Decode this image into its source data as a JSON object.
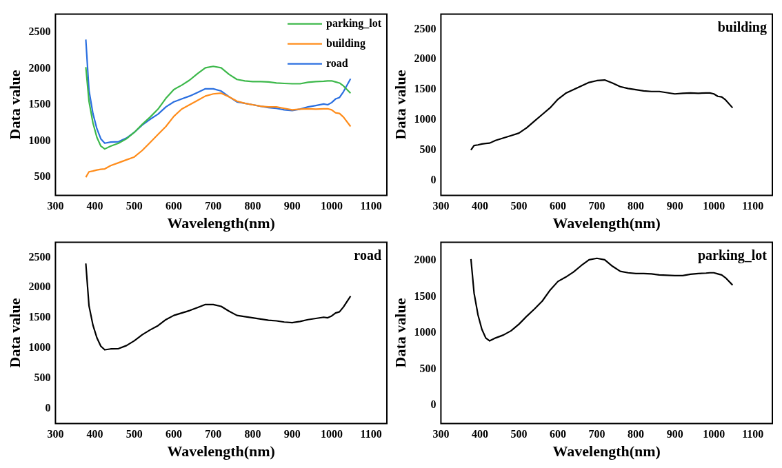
{
  "chart_data": [
    {
      "type": "line",
      "xlabel": "Wavelength(nm)",
      "ylabel": "Data value",
      "x": [
        377,
        385,
        395,
        405,
        415,
        425,
        440,
        460,
        480,
        500,
        520,
        540,
        560,
        580,
        600,
        620,
        640,
        660,
        680,
        700,
        720,
        740,
        760,
        780,
        800,
        820,
        840,
        860,
        880,
        900,
        920,
        940,
        960,
        980,
        990,
        1000,
        1010,
        1020,
        1030,
        1048
      ],
      "xlim": [
        300,
        1140
      ],
      "xticks": [
        300,
        400,
        500,
        600,
        700,
        800,
        900,
        1000,
        1100
      ],
      "ylim": [
        250,
        2750
      ],
      "yticks": [
        500,
        1000,
        1500,
        2000,
        2500
      ],
      "grid": false,
      "legend": "top right",
      "series": [
        {
          "name": "parking_lot",
          "color": "#3cb84a",
          "values": [
            2020,
            1550,
            1250,
            1050,
            930,
            890,
            930,
            970,
            1030,
            1120,
            1230,
            1330,
            1440,
            1590,
            1710,
            1770,
            1840,
            1930,
            2010,
            2030,
            2010,
            1920,
            1850,
            1830,
            1820,
            1820,
            1815,
            1800,
            1795,
            1790,
            1790,
            1810,
            1820,
            1825,
            1830,
            1830,
            1815,
            1800,
            1760,
            1660
          ]
        },
        {
          "name": "building",
          "color": "#ff8c1a",
          "values": [
            500,
            575,
            585,
            600,
            610,
            615,
            660,
            700,
            740,
            780,
            870,
            980,
            1090,
            1200,
            1340,
            1440,
            1500,
            1560,
            1620,
            1650,
            1660,
            1610,
            1550,
            1520,
            1500,
            1480,
            1470,
            1470,
            1450,
            1430,
            1440,
            1445,
            1440,
            1445,
            1445,
            1430,
            1390,
            1380,
            1330,
            1200
          ]
        },
        {
          "name": "road",
          "color": "#2a6fe0",
          "values": [
            2400,
            1700,
            1380,
            1170,
            1030,
            970,
            985,
            990,
            1040,
            1120,
            1220,
            1300,
            1370,
            1470,
            1540,
            1580,
            1620,
            1670,
            1720,
            1720,
            1690,
            1610,
            1540,
            1520,
            1500,
            1480,
            1460,
            1450,
            1430,
            1420,
            1440,
            1470,
            1490,
            1510,
            1500,
            1530,
            1580,
            1600,
            1680,
            1860
          ]
        }
      ]
    },
    {
      "type": "line",
      "title": "building",
      "xlabel": "Wavelength(nm)",
      "ylabel": "Data value",
      "x": [
        377,
        385,
        395,
        405,
        415,
        425,
        440,
        460,
        480,
        500,
        520,
        540,
        560,
        580,
        600,
        620,
        640,
        660,
        680,
        700,
        720,
        740,
        760,
        780,
        800,
        820,
        840,
        860,
        880,
        900,
        920,
        940,
        960,
        980,
        990,
        1000,
        1010,
        1020,
        1030,
        1048
      ],
      "xlim": [
        300,
        1150
      ],
      "xticks": [
        300,
        400,
        500,
        600,
        700,
        800,
        900,
        1000,
        1100
      ],
      "ylim": [
        -250,
        2750
      ],
      "yticks": [
        0,
        500,
        1000,
        1500,
        2000,
        2500
      ],
      "grid": false,
      "series": [
        {
          "color": "#000000",
          "values": [
            500,
            575,
            585,
            600,
            610,
            615,
            660,
            700,
            740,
            780,
            870,
            980,
            1090,
            1200,
            1340,
            1440,
            1500,
            1560,
            1620,
            1650,
            1660,
            1610,
            1550,
            1520,
            1500,
            1480,
            1470,
            1470,
            1450,
            1430,
            1440,
            1445,
            1440,
            1445,
            1445,
            1430,
            1390,
            1380,
            1330,
            1200
          ]
        }
      ]
    },
    {
      "type": "line",
      "title": "road",
      "xlabel": "Wavelength(nm)",
      "ylabel": "Data value",
      "x": [
        377,
        385,
        395,
        405,
        415,
        425,
        440,
        460,
        480,
        500,
        520,
        540,
        560,
        580,
        600,
        620,
        640,
        660,
        680,
        700,
        720,
        740,
        760,
        780,
        800,
        820,
        840,
        860,
        880,
        900,
        920,
        940,
        960,
        980,
        990,
        1000,
        1010,
        1020,
        1030,
        1048
      ],
      "xlim": [
        300,
        1140
      ],
      "xticks": [
        300,
        400,
        500,
        600,
        700,
        800,
        900,
        1000,
        1100
      ],
      "ylim": [
        -250,
        2750
      ],
      "yticks": [
        0,
        500,
        1000,
        1500,
        2000,
        2500
      ],
      "grid": false,
      "series": [
        {
          "color": "#000000",
          "values": [
            2400,
            1700,
            1380,
            1170,
            1030,
            970,
            985,
            990,
            1040,
            1120,
            1220,
            1300,
            1370,
            1470,
            1540,
            1580,
            1620,
            1670,
            1720,
            1720,
            1690,
            1610,
            1540,
            1520,
            1500,
            1480,
            1460,
            1450,
            1430,
            1420,
            1440,
            1470,
            1490,
            1510,
            1500,
            1530,
            1580,
            1600,
            1680,
            1860
          ]
        }
      ]
    },
    {
      "type": "line",
      "title": "parking_lot",
      "xlabel": "Wavelength(nm)",
      "ylabel": "Data value",
      "x": [
        377,
        385,
        395,
        405,
        415,
        425,
        440,
        460,
        480,
        500,
        520,
        540,
        560,
        580,
        600,
        620,
        640,
        660,
        680,
        700,
        720,
        740,
        760,
        780,
        800,
        820,
        840,
        860,
        880,
        900,
        920,
        940,
        960,
        980,
        990,
        1000,
        1010,
        1020,
        1030,
        1048
      ],
      "xlim": [
        300,
        1150
      ],
      "xticks": [
        300,
        400,
        500,
        600,
        700,
        800,
        900,
        1000,
        1100
      ],
      "ylim": [
        -250,
        2250
      ],
      "yticks": [
        0,
        500,
        1000,
        1500,
        2000
      ],
      "grid": false,
      "series": [
        {
          "color": "#000000",
          "values": [
            2020,
            1550,
            1250,
            1050,
            930,
            890,
            930,
            970,
            1030,
            1120,
            1230,
            1330,
            1440,
            1590,
            1710,
            1770,
            1840,
            1930,
            2010,
            2030,
            2010,
            1920,
            1850,
            1830,
            1820,
            1820,
            1815,
            1800,
            1795,
            1790,
            1790,
            1810,
            1820,
            1825,
            1830,
            1830,
            1815,
            1800,
            1760,
            1660
          ]
        }
      ]
    }
  ]
}
